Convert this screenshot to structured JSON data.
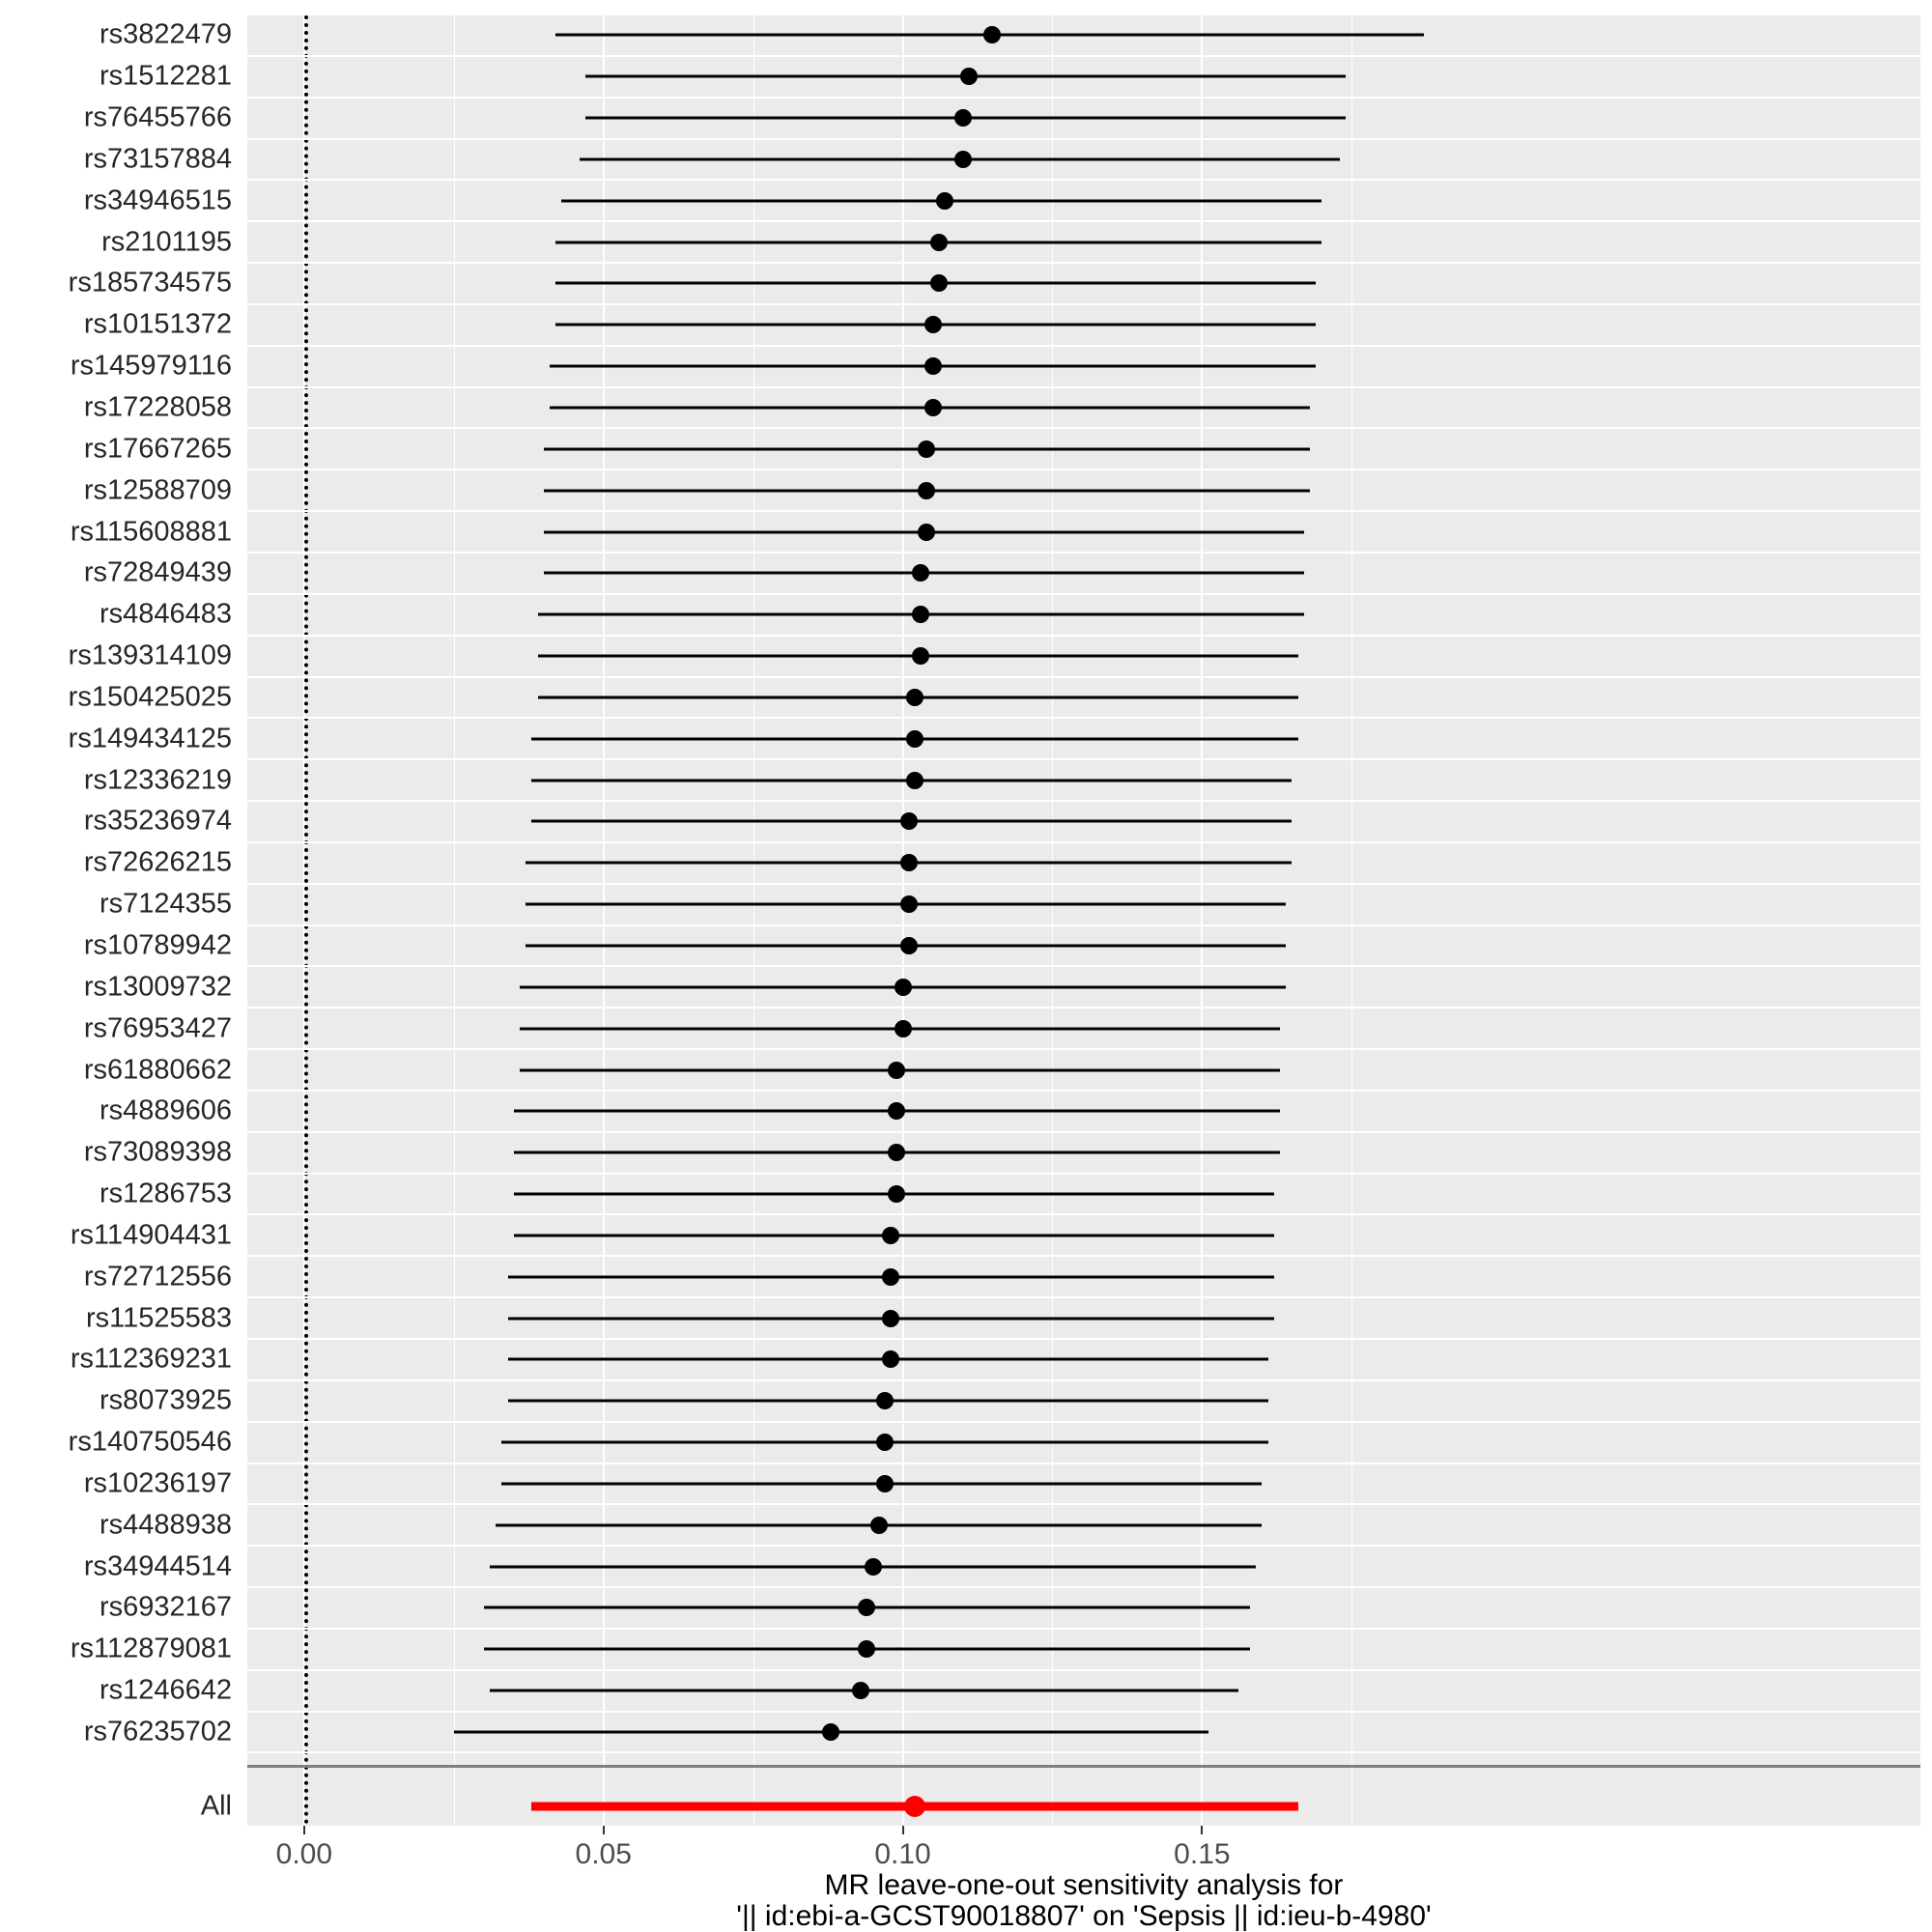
{
  "chart_data": {
    "type": "scatter",
    "variant": "forest-plot-leave-one-out",
    "title": "",
    "xlabel_line1": "MR leave-one-out sensitivity analysis for",
    "xlabel_line2": "'|| id:ebi-a-GCST90018807' on 'Sepsis || id:ieu-b-4980'",
    "xticks": [
      0.0,
      0.05,
      0.1,
      0.15
    ],
    "xtick_labels": [
      "0.00",
      "0.05",
      "0.10",
      "0.15"
    ],
    "minor_ticks": [
      0.025,
      0.075,
      0.125,
      0.175
    ],
    "xlim": [
      -0.0095,
      0.27
    ],
    "zero_line": 0,
    "grid": true,
    "legend": "none",
    "colors": {
      "point": "#000000",
      "ci": "#000000",
      "summary": "#FF0000",
      "panel": "#EBEBEB",
      "gridline": "#FFFFFF",
      "separator": "#7F7F7F",
      "axis_text": "#4D4D4D"
    },
    "rows": [
      {
        "label": "rs3822479",
        "est": 0.115,
        "lo": 0.042,
        "hi": 0.187
      },
      {
        "label": "rs1512281",
        "est": 0.111,
        "lo": 0.047,
        "hi": 0.174
      },
      {
        "label": "rs76455766",
        "est": 0.11,
        "lo": 0.047,
        "hi": 0.174
      },
      {
        "label": "rs73157884",
        "est": 0.11,
        "lo": 0.046,
        "hi": 0.173
      },
      {
        "label": "rs34946515",
        "est": 0.107,
        "lo": 0.043,
        "hi": 0.17
      },
      {
        "label": "rs2101195",
        "est": 0.106,
        "lo": 0.042,
        "hi": 0.17
      },
      {
        "label": "rs185734575",
        "est": 0.106,
        "lo": 0.042,
        "hi": 0.169
      },
      {
        "label": "rs10151372",
        "est": 0.105,
        "lo": 0.042,
        "hi": 0.169
      },
      {
        "label": "rs145979116",
        "est": 0.105,
        "lo": 0.041,
        "hi": 0.169
      },
      {
        "label": "rs17228058",
        "est": 0.105,
        "lo": 0.041,
        "hi": 0.168
      },
      {
        "label": "rs17667265",
        "est": 0.104,
        "lo": 0.04,
        "hi": 0.168
      },
      {
        "label": "rs12588709",
        "est": 0.104,
        "lo": 0.04,
        "hi": 0.168
      },
      {
        "label": "rs115608881",
        "est": 0.104,
        "lo": 0.04,
        "hi": 0.167
      },
      {
        "label": "rs72849439",
        "est": 0.103,
        "lo": 0.04,
        "hi": 0.167
      },
      {
        "label": "rs4846483",
        "est": 0.103,
        "lo": 0.039,
        "hi": 0.167
      },
      {
        "label": "rs139314109",
        "est": 0.103,
        "lo": 0.039,
        "hi": 0.166
      },
      {
        "label": "rs150425025",
        "est": 0.102,
        "lo": 0.039,
        "hi": 0.166
      },
      {
        "label": "rs149434125",
        "est": 0.102,
        "lo": 0.038,
        "hi": 0.166
      },
      {
        "label": "rs12336219",
        "est": 0.102,
        "lo": 0.038,
        "hi": 0.165
      },
      {
        "label": "rs35236974",
        "est": 0.101,
        "lo": 0.038,
        "hi": 0.165
      },
      {
        "label": "rs72626215",
        "est": 0.101,
        "lo": 0.037,
        "hi": 0.165
      },
      {
        "label": "rs7124355",
        "est": 0.101,
        "lo": 0.037,
        "hi": 0.164
      },
      {
        "label": "rs10789942",
        "est": 0.101,
        "lo": 0.037,
        "hi": 0.164
      },
      {
        "label": "rs13009732",
        "est": 0.1,
        "lo": 0.036,
        "hi": 0.164
      },
      {
        "label": "rs76953427",
        "est": 0.1,
        "lo": 0.036,
        "hi": 0.163
      },
      {
        "label": "rs61880662",
        "est": 0.099,
        "lo": 0.036,
        "hi": 0.163
      },
      {
        "label": "rs4889606",
        "est": 0.099,
        "lo": 0.035,
        "hi": 0.163
      },
      {
        "label": "rs73089398",
        "est": 0.099,
        "lo": 0.035,
        "hi": 0.163
      },
      {
        "label": "rs1286753",
        "est": 0.099,
        "lo": 0.035,
        "hi": 0.162
      },
      {
        "label": "rs114904431",
        "est": 0.098,
        "lo": 0.035,
        "hi": 0.162
      },
      {
        "label": "rs72712556",
        "est": 0.098,
        "lo": 0.034,
        "hi": 0.162
      },
      {
        "label": "rs11525583",
        "est": 0.098,
        "lo": 0.034,
        "hi": 0.162
      },
      {
        "label": "rs112369231",
        "est": 0.098,
        "lo": 0.034,
        "hi": 0.161
      },
      {
        "label": "rs8073925",
        "est": 0.097,
        "lo": 0.034,
        "hi": 0.161
      },
      {
        "label": "rs140750546",
        "est": 0.097,
        "lo": 0.033,
        "hi": 0.161
      },
      {
        "label": "rs10236197",
        "est": 0.097,
        "lo": 0.033,
        "hi": 0.16
      },
      {
        "label": "rs4488938",
        "est": 0.096,
        "lo": 0.032,
        "hi": 0.16
      },
      {
        "label": "rs34944514",
        "est": 0.095,
        "lo": 0.031,
        "hi": 0.159
      },
      {
        "label": "rs6932167",
        "est": 0.094,
        "lo": 0.03,
        "hi": 0.158
      },
      {
        "label": "rs112879081",
        "est": 0.094,
        "lo": 0.03,
        "hi": 0.158
      },
      {
        "label": "rs1246642",
        "est": 0.093,
        "lo": 0.031,
        "hi": 0.156
      },
      {
        "label": "rs76235702",
        "est": 0.088,
        "lo": 0.025,
        "hi": 0.151
      }
    ],
    "summary": {
      "label": "All",
      "est": 0.102,
      "lo": 0.038,
      "hi": 0.166
    }
  }
}
